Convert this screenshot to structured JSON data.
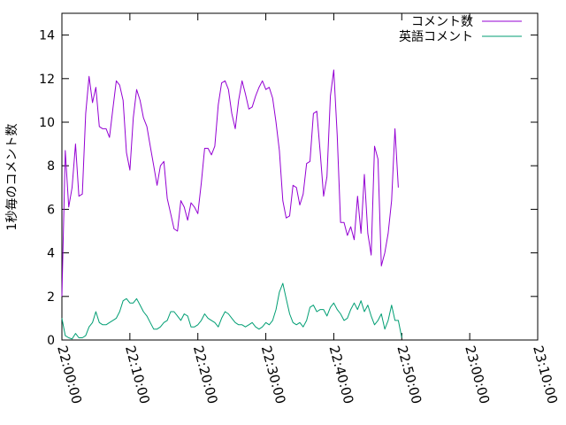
{
  "chart_data": {
    "type": "line",
    "title": "",
    "xlabel": "",
    "ylabel": "1秒毎のコメント数",
    "xlim": [
      0,
      70
    ],
    "ylim": [
      0,
      15
    ],
    "xticks": [
      {
        "value": 0,
        "label": "22:00:00"
      },
      {
        "value": 10,
        "label": "22:10:00"
      },
      {
        "value": 20,
        "label": "22:20:00"
      },
      {
        "value": 30,
        "label": "22:30:00"
      },
      {
        "value": 40,
        "label": "22:40:00"
      },
      {
        "value": 50,
        "label": "22:50:00"
      },
      {
        "value": 60,
        "label": "23:00:00"
      },
      {
        "value": 70,
        "label": "23:10:00"
      }
    ],
    "yticks": [
      {
        "value": 0,
        "label": "0"
      },
      {
        "value": 2,
        "label": "2"
      },
      {
        "value": 4,
        "label": "4"
      },
      {
        "value": 6,
        "label": "6"
      },
      {
        "value": 8,
        "label": "8"
      },
      {
        "value": 10,
        "label": "10"
      },
      {
        "value": 12,
        "label": "12"
      },
      {
        "value": 14,
        "label": "14"
      }
    ],
    "grid": false,
    "legend": "top-right",
    "series": [
      {
        "name": "コメント数",
        "color": "#9400d3",
        "points": [
          [
            0.0,
            2.0
          ],
          [
            0.5,
            8.7
          ],
          [
            1.0,
            6.1
          ],
          [
            1.5,
            7.0
          ],
          [
            2.0,
            9.0
          ],
          [
            2.5,
            6.6
          ],
          [
            3.0,
            6.7
          ],
          [
            3.5,
            10.4
          ],
          [
            4.0,
            12.1
          ],
          [
            4.5,
            10.9
          ],
          [
            5.0,
            11.6
          ],
          [
            5.5,
            9.8
          ],
          [
            6.0,
            9.7
          ],
          [
            6.5,
            9.7
          ],
          [
            7.0,
            9.3
          ],
          [
            7.5,
            10.6
          ],
          [
            8.0,
            11.9
          ],
          [
            8.5,
            11.7
          ],
          [
            9.0,
            11.0
          ],
          [
            9.5,
            8.6
          ],
          [
            10.0,
            7.8
          ],
          [
            10.5,
            10.2
          ],
          [
            11.0,
            11.5
          ],
          [
            11.5,
            11.0
          ],
          [
            12.0,
            10.2
          ],
          [
            12.5,
            9.8
          ],
          [
            13.0,
            8.9
          ],
          [
            13.5,
            8.0
          ],
          [
            14.0,
            7.1
          ],
          [
            14.5,
            8.0
          ],
          [
            15.0,
            8.2
          ],
          [
            15.5,
            6.5
          ],
          [
            16.0,
            5.8
          ],
          [
            16.5,
            5.1
          ],
          [
            17.0,
            5.0
          ],
          [
            17.5,
            6.4
          ],
          [
            18.0,
            6.1
          ],
          [
            18.5,
            5.5
          ],
          [
            19.0,
            6.3
          ],
          [
            19.5,
            6.1
          ],
          [
            20.0,
            5.8
          ],
          [
            20.5,
            7.2
          ],
          [
            21.0,
            8.8
          ],
          [
            21.5,
            8.8
          ],
          [
            22.0,
            8.5
          ],
          [
            22.5,
            8.9
          ],
          [
            23.0,
            10.8
          ],
          [
            23.5,
            11.8
          ],
          [
            24.0,
            11.9
          ],
          [
            24.5,
            11.5
          ],
          [
            25.0,
            10.4
          ],
          [
            25.5,
            9.7
          ],
          [
            26.0,
            11.0
          ],
          [
            26.5,
            11.9
          ],
          [
            27.0,
            11.3
          ],
          [
            27.5,
            10.6
          ],
          [
            28.0,
            10.7
          ],
          [
            28.5,
            11.2
          ],
          [
            29.0,
            11.6
          ],
          [
            29.5,
            11.9
          ],
          [
            30.0,
            11.5
          ],
          [
            30.5,
            11.6
          ],
          [
            31.0,
            11.1
          ],
          [
            31.5,
            10.0
          ],
          [
            32.0,
            8.7
          ],
          [
            32.5,
            6.4
          ],
          [
            33.0,
            5.6
          ],
          [
            33.5,
            5.7
          ],
          [
            34.0,
            7.1
          ],
          [
            34.5,
            7.0
          ],
          [
            35.0,
            6.2
          ],
          [
            35.5,
            6.7
          ],
          [
            36.0,
            8.1
          ],
          [
            36.5,
            8.2
          ],
          [
            37.0,
            10.4
          ],
          [
            37.5,
            10.5
          ],
          [
            38.0,
            8.6
          ],
          [
            38.5,
            6.6
          ],
          [
            39.0,
            7.5
          ],
          [
            39.5,
            11.2
          ],
          [
            40.0,
            12.4
          ],
          [
            40.5,
            9.4
          ],
          [
            41.0,
            5.4
          ],
          [
            41.5,
            5.4
          ],
          [
            42.0,
            4.8
          ],
          [
            42.5,
            5.2
          ],
          [
            43.0,
            4.6
          ],
          [
            43.5,
            6.6
          ],
          [
            44.0,
            4.9
          ],
          [
            44.5,
            7.6
          ],
          [
            45.0,
            4.9
          ],
          [
            45.5,
            3.9
          ],
          [
            46.0,
            8.9
          ],
          [
            46.5,
            8.3
          ],
          [
            47.0,
            3.4
          ],
          [
            47.5,
            4.0
          ],
          [
            48.0,
            4.9
          ],
          [
            48.5,
            6.4
          ],
          [
            49.0,
            9.7
          ],
          [
            49.5,
            7.0
          ]
        ]
      },
      {
        "name": "英語コメント",
        "color": "#009e73",
        "points": [
          [
            0.0,
            1.0
          ],
          [
            0.5,
            0.2
          ],
          [
            1.0,
            0.1
          ],
          [
            1.5,
            0.05
          ],
          [
            2.0,
            0.3
          ],
          [
            2.5,
            0.1
          ],
          [
            3.0,
            0.1
          ],
          [
            3.5,
            0.2
          ],
          [
            4.0,
            0.6
          ],
          [
            4.5,
            0.8
          ],
          [
            5.0,
            1.3
          ],
          [
            5.5,
            0.8
          ],
          [
            6.0,
            0.7
          ],
          [
            6.5,
            0.7
          ],
          [
            7.0,
            0.8
          ],
          [
            7.5,
            0.9
          ],
          [
            8.0,
            1.0
          ],
          [
            8.5,
            1.3
          ],
          [
            9.0,
            1.8
          ],
          [
            9.5,
            1.9
          ],
          [
            10.0,
            1.7
          ],
          [
            10.5,
            1.7
          ],
          [
            11.0,
            1.9
          ],
          [
            11.5,
            1.6
          ],
          [
            12.0,
            1.3
          ],
          [
            12.5,
            1.1
          ],
          [
            13.0,
            0.8
          ],
          [
            13.5,
            0.5
          ],
          [
            14.0,
            0.5
          ],
          [
            14.5,
            0.6
          ],
          [
            15.0,
            0.8
          ],
          [
            15.5,
            0.9
          ],
          [
            16.0,
            1.3
          ],
          [
            16.5,
            1.3
          ],
          [
            17.0,
            1.1
          ],
          [
            17.5,
            0.9
          ],
          [
            18.0,
            1.2
          ],
          [
            18.5,
            1.1
          ],
          [
            19.0,
            0.6
          ],
          [
            19.5,
            0.6
          ],
          [
            20.0,
            0.7
          ],
          [
            20.5,
            0.9
          ],
          [
            21.0,
            1.2
          ],
          [
            21.5,
            1.0
          ],
          [
            22.0,
            0.9
          ],
          [
            22.5,
            0.8
          ],
          [
            23.0,
            0.6
          ],
          [
            23.5,
            1.0
          ],
          [
            24.0,
            1.3
          ],
          [
            24.5,
            1.2
          ],
          [
            25.0,
            1.0
          ],
          [
            25.5,
            0.8
          ],
          [
            26.0,
            0.7
          ],
          [
            26.5,
            0.7
          ],
          [
            27.0,
            0.6
          ],
          [
            27.5,
            0.7
          ],
          [
            28.0,
            0.8
          ],
          [
            28.5,
            0.6
          ],
          [
            29.0,
            0.5
          ],
          [
            29.5,
            0.6
          ],
          [
            30.0,
            0.8
          ],
          [
            30.5,
            0.7
          ],
          [
            31.0,
            0.9
          ],
          [
            31.5,
            1.4
          ],
          [
            32.0,
            2.2
          ],
          [
            32.5,
            2.6
          ],
          [
            33.0,
            1.9
          ],
          [
            33.5,
            1.2
          ],
          [
            34.0,
            0.8
          ],
          [
            34.5,
            0.7
          ],
          [
            35.0,
            0.8
          ],
          [
            35.5,
            0.6
          ],
          [
            36.0,
            0.9
          ],
          [
            36.5,
            1.5
          ],
          [
            37.0,
            1.6
          ],
          [
            37.5,
            1.3
          ],
          [
            38.0,
            1.4
          ],
          [
            38.5,
            1.4
          ],
          [
            39.0,
            1.1
          ],
          [
            39.5,
            1.5
          ],
          [
            40.0,
            1.7
          ],
          [
            40.5,
            1.4
          ],
          [
            41.0,
            1.2
          ],
          [
            41.5,
            0.9
          ],
          [
            42.0,
            1.0
          ],
          [
            42.5,
            1.4
          ],
          [
            43.0,
            1.7
          ],
          [
            43.5,
            1.4
          ],
          [
            44.0,
            1.8
          ],
          [
            44.5,
            1.3
          ],
          [
            45.0,
            1.6
          ],
          [
            45.5,
            1.1
          ],
          [
            46.0,
            0.7
          ],
          [
            46.5,
            0.9
          ],
          [
            47.0,
            1.2
          ],
          [
            47.5,
            0.5
          ],
          [
            48.0,
            0.9
          ],
          [
            48.5,
            1.6
          ],
          [
            49.0,
            0.9
          ],
          [
            49.5,
            0.9
          ],
          [
            50.0,
            0.1
          ]
        ]
      }
    ]
  }
}
